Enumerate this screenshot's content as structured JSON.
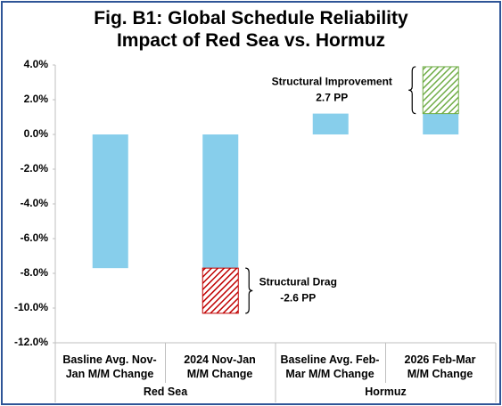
{
  "chart_data": {
    "type": "stacked_bar",
    "title": "Fig. B1: Global Schedule Reliability\nImpact of Red Sea vs. Hormuz",
    "groups": [
      {
        "label": "Red Sea",
        "categories": [
          "Basline Avg. Nov-\nJan M/M Change",
          "2024 Nov-Jan\nM/M Change"
        ]
      },
      {
        "label": "Hormuz",
        "categories": [
          "Baseline Avg. Feb-\nMar M/M Change",
          "2026 Feb-Mar\nM/M Change"
        ]
      }
    ],
    "series": [
      {
        "color": "#87ceeb",
        "values": [
          -7.7,
          -7.7,
          1.2,
          1.2
        ]
      },
      {
        "color": "#c00000",
        "hatch": true,
        "annotation": "Structural Drag",
        "values": [
          null,
          -2.6,
          null,
          null
        ],
        "value_labels": [
          null,
          "-2.6 PP",
          null,
          null
        ]
      },
      {
        "color": "#70ad47",
        "hatch": true,
        "annotation": "Structural Improvement",
        "values": [
          null,
          null,
          null,
          2.7
        ],
        "value_labels": [
          null,
          null,
          null,
          "2.7 PP"
        ]
      }
    ],
    "ylim": [
      -12,
      4
    ],
    "yticks": [
      {
        "value": -12,
        "label": "-12.0%"
      },
      {
        "value": -10,
        "label": "-10.0%"
      },
      {
        "value": -8,
        "label": "-8.0%"
      },
      {
        "value": -6,
        "label": "-6.0%"
      },
      {
        "value": -4,
        "label": "-4.0%"
      },
      {
        "value": -2,
        "label": "-2.0%"
      },
      {
        "value": 0,
        "label": "0.0%"
      },
      {
        "value": 2,
        "label": "2.0%"
      },
      {
        "value": 4,
        "label": "4.0%"
      }
    ],
    "grid": false
  }
}
